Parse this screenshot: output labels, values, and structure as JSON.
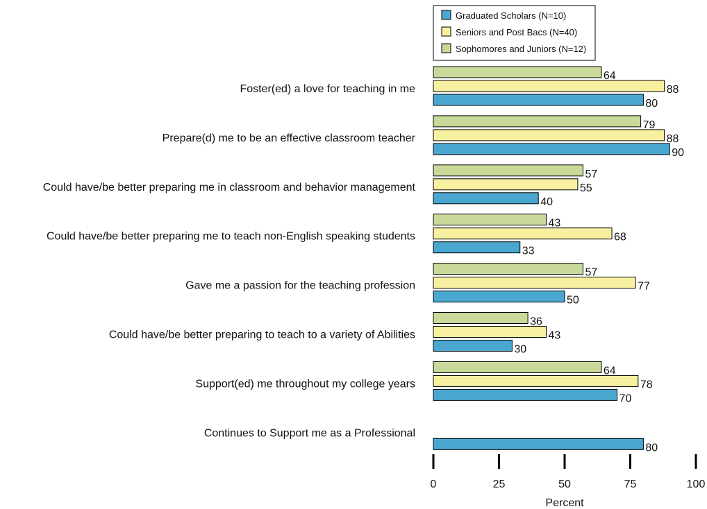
{
  "chart_data": {
    "type": "barh",
    "categories": [
      "Foster(ed) a love for teaching in me",
      "Prepare(d) me to be an effective classroom teacher",
      "Could have/be better preparing me in classroom and behavior management",
      "Could have/be better preparing me to teach non-English speaking students",
      "Gave me a passion for the teaching profession",
      "Could have/be better preparing to teach to a variety of Abilities",
      "Support(ed) me throughout my college years",
      "Continues to Support me as a Professional"
    ],
    "series": [
      {
        "name": "Graduated Scholars (N=10)",
        "color": "#4aa8d0",
        "values": [
          80,
          90,
          40,
          33,
          50,
          30,
          70,
          80
        ]
      },
      {
        "name": "Seniors and Post Bacs (N=40)",
        "color": "#f7f0a0",
        "values": [
          88,
          88,
          55,
          68,
          77,
          43,
          78,
          null
        ]
      },
      {
        "name": "Sophomores and Juniors (N=12)",
        "color": "#c8d99a",
        "values": [
          64,
          79,
          57,
          43,
          57,
          36,
          64,
          null
        ]
      }
    ],
    "xlabel": "Percent",
    "xlim": [
      0,
      100
    ],
    "xticks": [
      0,
      25,
      50,
      75,
      100
    ],
    "legend": "top"
  }
}
